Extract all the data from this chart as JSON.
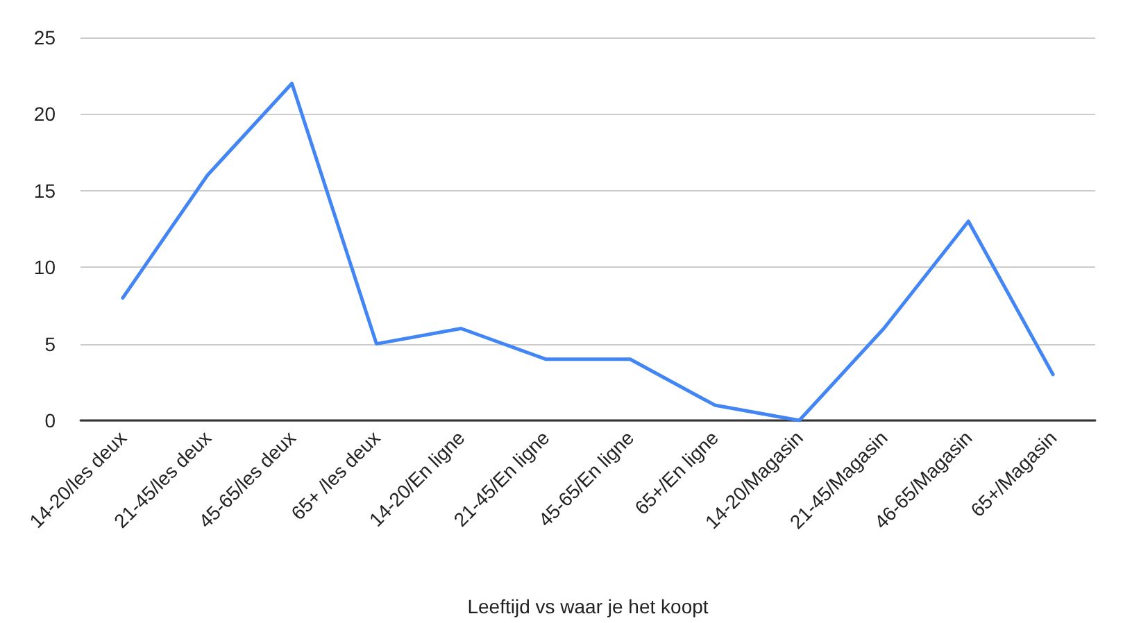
{
  "chart_data": {
    "type": "line",
    "xlabel": "Leeftijd vs waar je het koopt",
    "categories": [
      "14-20/les deux",
      "21-45/les deux",
      "45-65/les deux",
      "65+ /les deux",
      "14-20/En ligne",
      "21-45/En ligne",
      "45-65/En ligne",
      "65+/En ligne",
      "14-20/Magasin",
      "21-45/Magasin",
      "46-65/Magasin",
      "65+/Magasin"
    ],
    "series": [
      {
        "color": "#4285f4",
        "values": [
          8,
          16,
          22,
          5,
          6,
          4,
          4,
          1,
          0,
          6,
          13,
          3
        ]
      }
    ],
    "ylim": [
      0,
      25
    ],
    "yticks": [
      0,
      5,
      10,
      15,
      20,
      25
    ],
    "grid": "y",
    "marker": "none",
    "line_style": "solid",
    "legend": false
  }
}
